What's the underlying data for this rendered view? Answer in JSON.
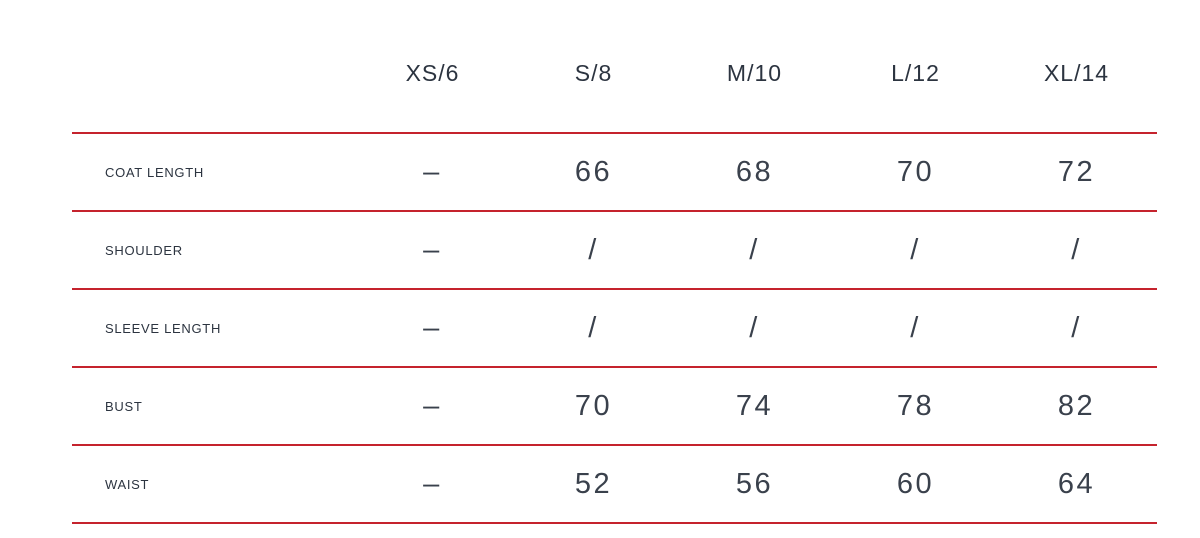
{
  "theme": {
    "divider": "#c5232d",
    "text-strong": "#2c3440",
    "text-light": "#3a414c"
  },
  "size_chart": {
    "columns": [
      "",
      "XS/6",
      "S/8",
      "M/10",
      "L/12",
      "XL/14"
    ],
    "rows": [
      {
        "label": "COAT LENGTH",
        "values": [
          "–",
          "66",
          "68",
          "70",
          "72"
        ]
      },
      {
        "label": "SHOULDER",
        "values": [
          "–",
          "/",
          "/",
          "/",
          "/"
        ]
      },
      {
        "label": "SLEEVE LENGTH",
        "values": [
          "–",
          "/",
          "/",
          "/",
          "/"
        ]
      },
      {
        "label": "BUST",
        "values": [
          "–",
          "70",
          "74",
          "78",
          "82"
        ]
      },
      {
        "label": "WAIST",
        "values": [
          "–",
          "52",
          "56",
          "60",
          "64"
        ]
      }
    ]
  }
}
